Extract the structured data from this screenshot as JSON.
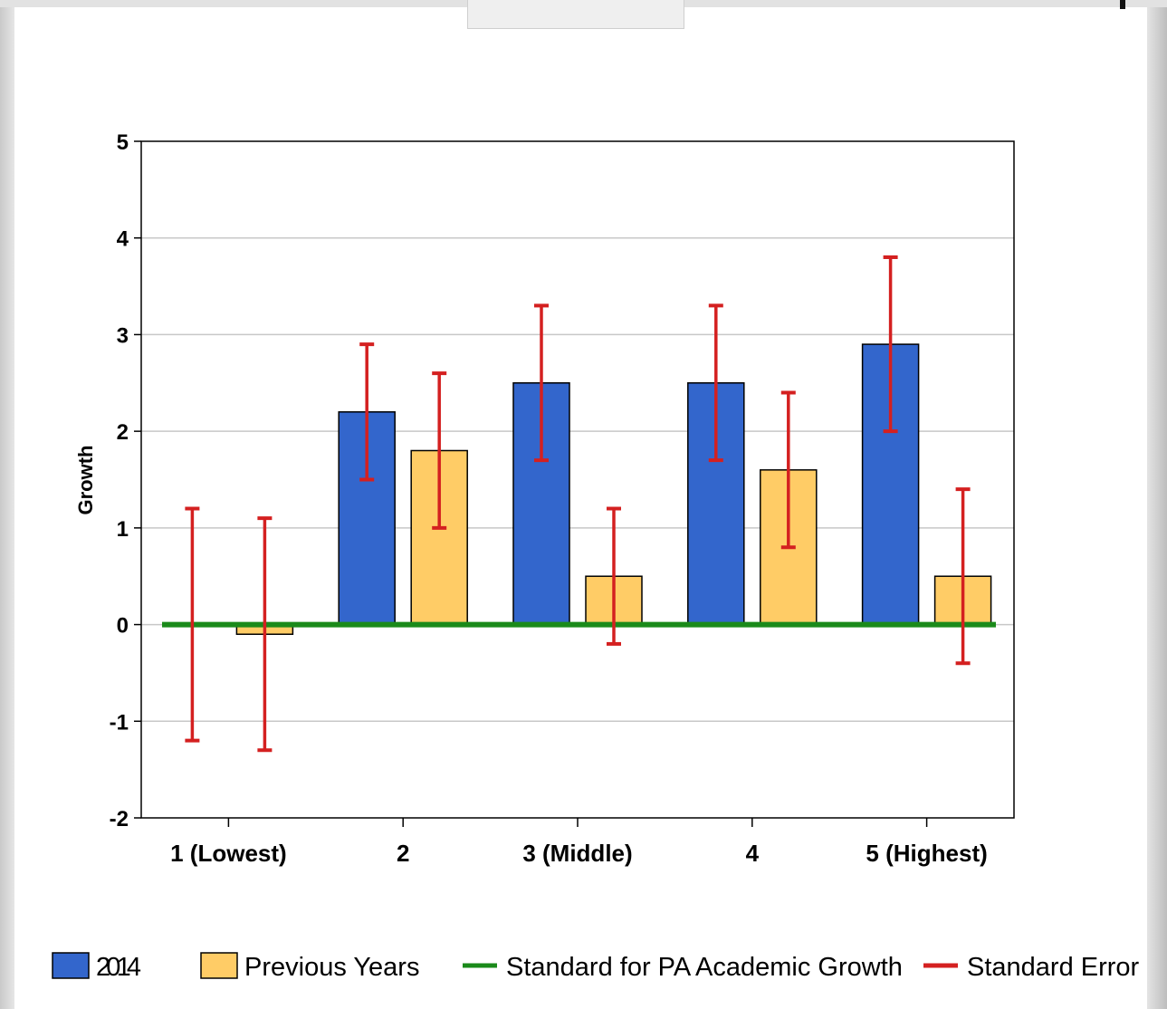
{
  "chart_data": {
    "type": "bar",
    "title": "",
    "xlabel": "",
    "ylabel": "Growth",
    "ylim": [
      -2,
      5
    ],
    "yticks": [
      "5",
      "4",
      "3",
      "2",
      "1",
      "0",
      "-1",
      "-2"
    ],
    "categories": [
      "1 (Lowest)",
      "2",
      "3 (Middle)",
      "4",
      "5 (Highest)"
    ],
    "series": [
      {
        "name": "2014",
        "color": "#3366cc",
        "values": [
          0,
          2.2,
          2.5,
          2.5,
          2.9
        ],
        "error_low": [
          -1.2,
          1.5,
          1.7,
          1.7,
          2.0
        ],
        "error_high": [
          1.2,
          2.9,
          3.3,
          3.3,
          3.8
        ]
      },
      {
        "name": "Previous Years",
        "color": "#ffcc66",
        "values": [
          -0.1,
          1.8,
          0.5,
          1.6,
          0.5
        ],
        "error_low": [
          -1.3,
          1.0,
          -0.2,
          0.8,
          -0.4
        ],
        "error_high": [
          1.1,
          2.6,
          1.2,
          2.4,
          1.4
        ]
      }
    ],
    "reference_line": {
      "name": "Standard for PA Academic Growth",
      "value": 0,
      "color": "#1a8a1a"
    },
    "error_bars": {
      "name": "Standard Error",
      "color": "#d42020"
    },
    "grid": true,
    "legend_position": "bottom"
  }
}
